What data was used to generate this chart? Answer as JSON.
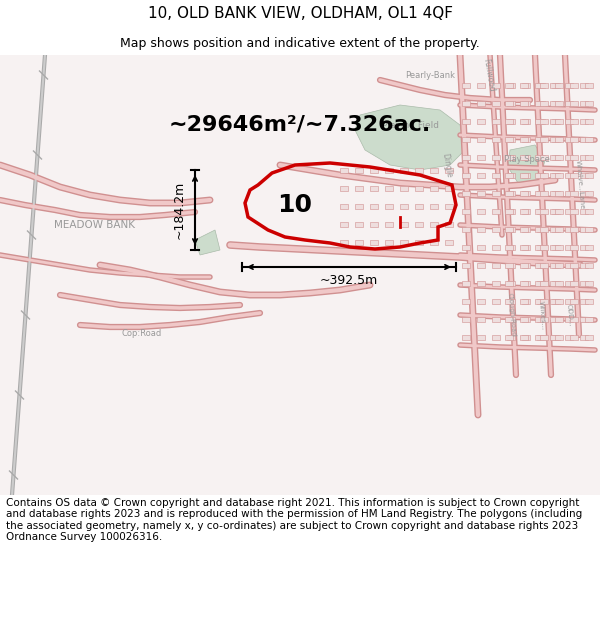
{
  "title": "10, OLD BANK VIEW, OLDHAM, OL1 4QF",
  "subtitle": "Map shows position and indicative extent of the property.",
  "footer_text": "Contains OS data © Crown copyright and database right 2021. This information is subject to Crown copyright and database rights 2023 and is reproduced with the permission of HM Land Registry. The polygons (including the associated geometry, namely x, y co-ordinates) are subject to Crown copyright and database rights 2023 Ordnance Survey 100026316.",
  "area_label": "~29646m²/~7.326ac.",
  "width_label": "~392.5m",
  "height_label": "~184.2m",
  "plot_number": "10",
  "bg_color": "#f7f2f2",
  "road_fill": "#f0c8c8",
  "road_edge": "#d09090",
  "highlight_color": "#cc0000",
  "green_color": "#ccdccc",
  "green_edge": "#aabbaa",
  "label_gray": "#999999",
  "title_fontsize": 11,
  "subtitle_fontsize": 9,
  "footer_fontsize": 7.5,
  "area_fontsize": 16,
  "plotnum_fontsize": 18,
  "dim_fontsize": 9,
  "fig_width": 6.0,
  "fig_height": 6.25
}
